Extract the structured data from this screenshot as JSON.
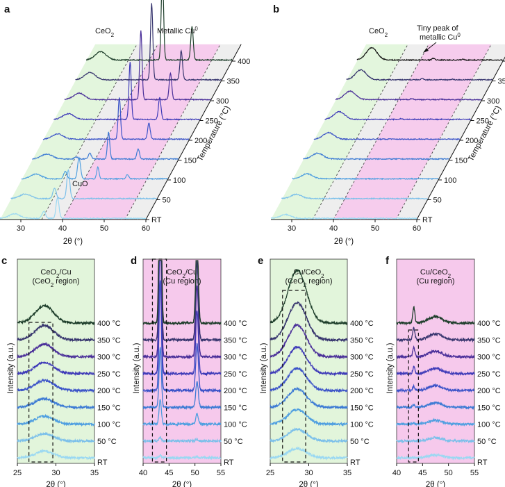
{
  "panel_labels": [
    "a",
    "b",
    "c",
    "d",
    "e",
    "f"
  ],
  "colors": {
    "ceo2_region": "#e2f5db",
    "cu_region": "#f6c9ec",
    "gap_region": "#ededed",
    "series": [
      "#9ad8f2",
      "#7cc0ea",
      "#4f9fe0",
      "#3d7bd4",
      "#3b53c8",
      "#3f3bb8",
      "#4a2f99",
      "#37356e",
      "#1d3d2a"
    ],
    "series_b_top": "#111111"
  },
  "chart_data": [
    {
      "panel": "a",
      "type": "line",
      "layout": "waterfall-3d",
      "xlabel": "2θ (°)",
      "ylabel": "Temperature (°C)",
      "xlim": [
        25,
        60
      ],
      "xticks": [
        "30",
        "40",
        "50",
        "60"
      ],
      "yticks": [
        "RT",
        "50",
        "100",
        "150",
        "200",
        "250",
        "300",
        "350",
        "400"
      ],
      "series_names": [
        "RT",
        "50",
        "100",
        "150",
        "200",
        "250",
        "300",
        "350",
        "400"
      ],
      "annotations": [
        "CeO2",
        "Metallic Cu0",
        "CuO"
      ],
      "peaks": {
        "CeO2_2theta": 28.5,
        "Cu_2theta": [
          43.3,
          50.4
        ],
        "CuO_2theta": 38.8,
        "Cu_intensity": [
          0.0,
          0.0,
          0.3,
          0.7,
          1.1,
          1.5,
          1.8,
          2.0,
          2.3
        ],
        "CuO_intensity": [
          0.55,
          0.75,
          0.55,
          0.15,
          0.0,
          0.0,
          0.0,
          0.0,
          0.0
        ],
        "CeO2_intensity": [
          0.12,
          0.12,
          0.12,
          0.13,
          0.14,
          0.15,
          0.17,
          0.19,
          0.22
        ]
      }
    },
    {
      "panel": "b",
      "type": "line",
      "layout": "waterfall-3d",
      "xlabel": "2θ (°)",
      "ylabel": "Temperature (°C)",
      "xlim": [
        25,
        60
      ],
      "xticks": [
        "30",
        "40",
        "50",
        "60"
      ],
      "yticks": [
        "RT",
        "50",
        "100",
        "150",
        "200",
        "250",
        "300",
        "350",
        "400"
      ],
      "series_names": [
        "RT",
        "50",
        "100",
        "150",
        "200",
        "250",
        "300",
        "350",
        "400"
      ],
      "annotations": [
        "CeO2",
        "Tiny peak of metallic Cu0"
      ],
      "peaks": {
        "CeO2_2theta": 28.5,
        "Cu_2theta": [
          43.3,
          50.4
        ],
        "CeO2_intensity": [
          0.1,
          0.11,
          0.13,
          0.15,
          0.17,
          0.2,
          0.22,
          0.26,
          0.32
        ],
        "Cu_intensity": [
          0.0,
          0.0,
          0.0,
          0.0,
          0.01,
          0.02,
          0.03,
          0.04,
          0.05
        ]
      }
    },
    {
      "panel": "c",
      "type": "line",
      "layout": "stacked",
      "title": "CeO2/Cu (CeO2 region)",
      "xlabel": "2θ (°)",
      "ylabel": "Intensity (a.u.)",
      "xlim": [
        25,
        35
      ],
      "xticks": [
        "25",
        "30",
        "35"
      ],
      "series_names": [
        "RT",
        "50 °C",
        "100 °C",
        "150 °C",
        "200 °C",
        "250 °C",
        "300 °C",
        "350 °C",
        "400 °C"
      ],
      "peak_center": 28.5,
      "peak_intensity": [
        0.1,
        0.11,
        0.12,
        0.13,
        0.15,
        0.17,
        0.19,
        0.22,
        0.26
      ],
      "highlight_range": [
        26.5,
        29.6
      ]
    },
    {
      "panel": "d",
      "type": "line",
      "layout": "stacked",
      "title": "CeO2/Cu (Cu region)",
      "xlabel": "2θ (°)",
      "ylabel": "Intensity (a.u.)",
      "xlim": [
        40,
        55
      ],
      "xticks": [
        "40",
        "45",
        "50",
        "55"
      ],
      "series_names": [
        "RT",
        "50 °C",
        "100 °C",
        "150 °C",
        "200 °C",
        "250 °C",
        "300 °C",
        "350 °C",
        "400 °C"
      ],
      "peak_centers": [
        43.3,
        50.4
      ],
      "peak_intensity": [
        0.05,
        0.08,
        0.5,
        1.2,
        2.2,
        3.0,
        3.4,
        3.7,
        4.0
      ],
      "highlight_range": [
        41.8,
        44.5
      ]
    },
    {
      "panel": "e",
      "type": "line",
      "layout": "stacked",
      "title": "Cu/CeO2 (CeO2 region)",
      "xlabel": "2θ (°)",
      "ylabel": "Intensity (a.u.)",
      "xlim": [
        25,
        35
      ],
      "xticks": [
        "25",
        "30",
        "35"
      ],
      "series_names": [
        "RT",
        "50 °C",
        "100 °C",
        "150 °C",
        "200 °C",
        "250 °C",
        "300 °C",
        "350 °C",
        "400 °C"
      ],
      "peak_center": 28.5,
      "peak_intensity": [
        0.14,
        0.18,
        0.22,
        0.28,
        0.34,
        0.4,
        0.48,
        0.56,
        0.8
      ],
      "highlight_range": [
        26.6,
        29.6
      ]
    },
    {
      "panel": "f",
      "type": "line",
      "layout": "stacked",
      "title": "Cu/CeO2 (Cu region)",
      "xlabel": "2θ (°)",
      "ylabel": "Intensity (a.u.)",
      "xlim": [
        40,
        55
      ],
      "xticks": [
        "40",
        "45",
        "50",
        "55"
      ],
      "series_names": [
        "RT",
        "50 °C",
        "100 °C",
        "150 °C",
        "200 °C",
        "250 °C",
        "300 °C",
        "350 °C",
        "400 °C"
      ],
      "peak_centers": [
        43.3,
        47.5
      ],
      "peak_intensity": [
        0.0,
        0.0,
        0.01,
        0.02,
        0.03,
        0.05,
        0.07,
        0.09,
        0.12
      ],
      "highlight_range": [
        42.3,
        44.2
      ]
    }
  ]
}
